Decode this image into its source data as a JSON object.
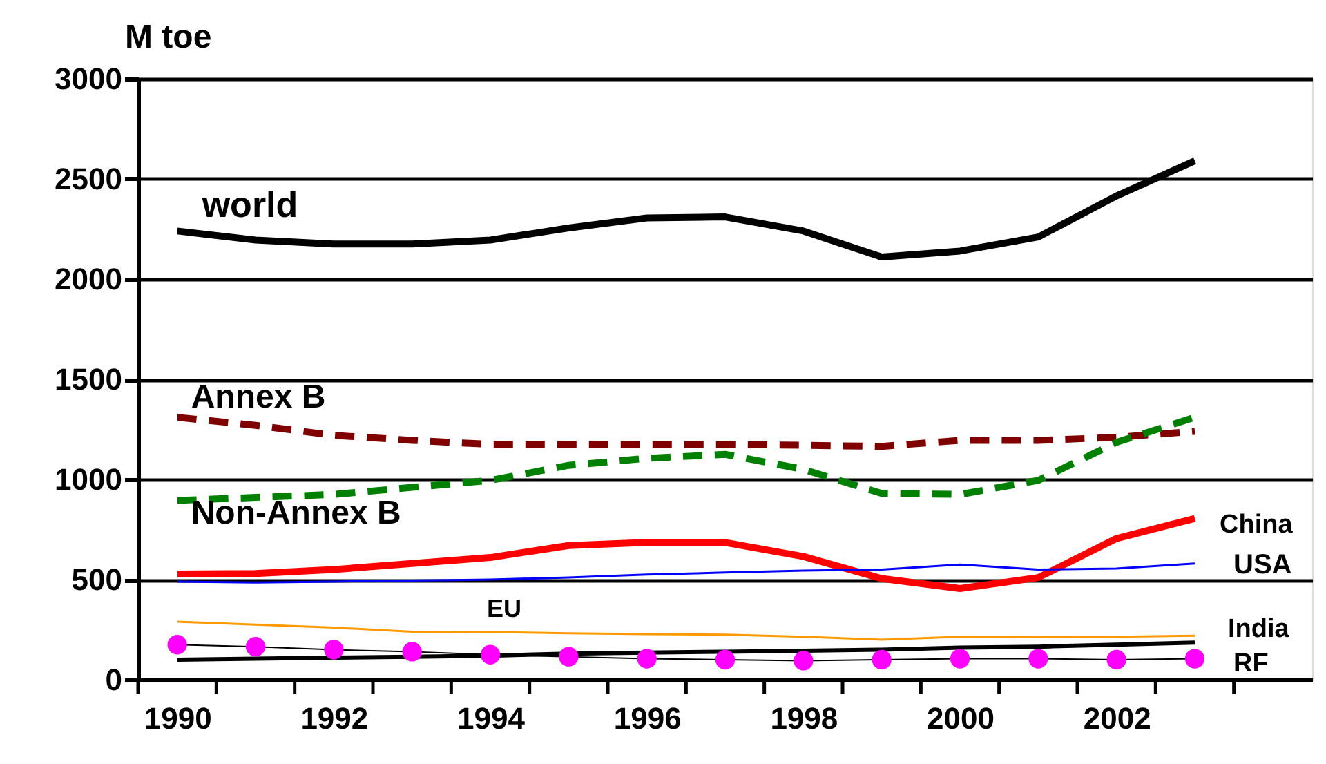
{
  "chart_data": {
    "type": "line",
    "ylabel": "M toe",
    "x": [
      1990,
      1991,
      1992,
      1993,
      1994,
      1995,
      1996,
      1997,
      1998,
      1999,
      2000,
      2001,
      2002,
      2003
    ],
    "xlim": [
      1989.5,
      2004.5
    ],
    "xticks": [
      1990,
      1992,
      1994,
      1996,
      1998,
      2000,
      2002,
      {
        "value": 1989.5,
        "label": null
      },
      {
        "value": 1990.5,
        "label": null
      },
      {
        "value": 1991.5,
        "label": null
      },
      {
        "value": 1992.5,
        "label": null
      },
      {
        "value": 1993.5,
        "label": null
      },
      {
        "value": 1994.5,
        "label": null
      },
      {
        "value": 1995.5,
        "label": null
      },
      {
        "value": 1996.5,
        "label": null
      },
      {
        "value": 1997.5,
        "label": null
      },
      {
        "value": 1998.5,
        "label": null
      },
      {
        "value": 1999.5,
        "label": null
      },
      {
        "value": 2000.5,
        "label": null
      },
      {
        "value": 2001.5,
        "label": null
      },
      {
        "value": 2002.5,
        "label": null
      },
      {
        "value": 2003.5,
        "label": null
      }
    ],
    "ylim": [
      0,
      3000
    ],
    "yticks": [
      0,
      500,
      1000,
      1500,
      2000,
      2500,
      3000
    ],
    "grid": "y",
    "legend": false,
    "series": [
      {
        "name": "world",
        "color": "#000000",
        "values": [
          2240,
          2195,
          2175,
          2175,
          2195,
          2255,
          2305,
          2310,
          2240,
          2110,
          2140,
          2210,
          2415,
          2590
        ]
      },
      {
        "name": "Annex B",
        "color": "#800000",
        "line_style": "dashed",
        "values": [
          1310,
          1270,
          1220,
          1195,
          1175,
          1175,
          1175,
          1175,
          1170,
          1165,
          1195,
          1195,
          1210,
          1240
        ]
      },
      {
        "name": "Non-Annex B",
        "color": "#008000",
        "line_style": "dashed",
        "values": [
          895,
          910,
          925,
          960,
          995,
          1070,
          1105,
          1125,
          1050,
          930,
          925,
          995,
          1185,
          1310
        ]
      },
      {
        "name": "China",
        "color": "#ff0000",
        "values": [
          528,
          530,
          550,
          580,
          610,
          670,
          685,
          685,
          615,
          505,
          455,
          510,
          705,
          805
        ]
      },
      {
        "name": "USA",
        "color": "#0000ff",
        "values": [
          490,
          485,
          490,
          495,
          500,
          510,
          525,
          535,
          545,
          550,
          575,
          550,
          555,
          580
        ]
      },
      {
        "name": "EU",
        "color": "#ff9900",
        "values": [
          290,
          275,
          260,
          240,
          238,
          232,
          228,
          225,
          215,
          200,
          215,
          212,
          215,
          220
        ]
      },
      {
        "name": "India",
        "color": "#000000",
        "values": [
          100,
          105,
          110,
          115,
          120,
          130,
          135,
          140,
          145,
          150,
          160,
          165,
          175,
          185
        ]
      },
      {
        "name": "RF",
        "color": "#000000",
        "marker": "circle",
        "colors": [
          "#ff00ff",
          "#ff00ff",
          "#ff00ff",
          "#ff00ff",
          "#ff00ff",
          "#ff00ff",
          "#ff00ff",
          "#ff00ff",
          "#ff00ff",
          "#ff00ff",
          "#ff00ff",
          "#ff00ff",
          "#ff00ff",
          "#ff00ff"
        ],
        "values": [
          175,
          165,
          150,
          140,
          125,
          115,
          105,
          100,
          95,
          100,
          105,
          105,
          100,
          105
        ]
      }
    ]
  }
}
